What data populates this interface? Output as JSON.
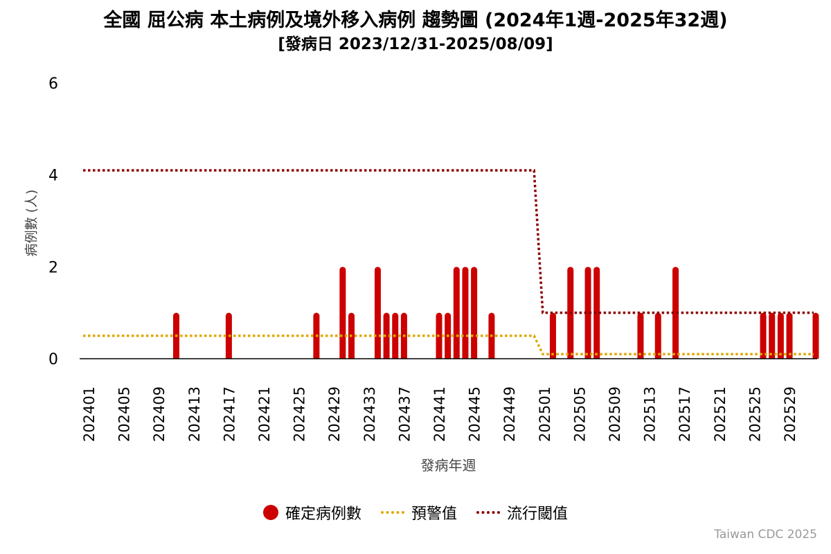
{
  "title": "全國 屈公病 本土病例及境外移入病例 趨勢圖 (2024年1週-2025年32週)",
  "subtitle": "[發病日 2023/12/31-2025/08/09]",
  "credit": "Taiwan CDC 2025",
  "colors": {
    "cases": "#cc0000",
    "warning": "#e0a800",
    "epidemic": "#8b0000",
    "axis": "#000000"
  },
  "chart_data": {
    "type": "bar",
    "xlabel": "發病年週",
    "ylabel": "病例數 (人)",
    "ylim": [
      0,
      6
    ],
    "yticks": [
      0,
      2,
      4,
      6
    ],
    "grid": false,
    "legend_position": "bottom-center",
    "x_tick_labels": [
      "202401",
      "202405",
      "202409",
      "202413",
      "202417",
      "202421",
      "202425",
      "202429",
      "202433",
      "202437",
      "202441",
      "202445",
      "202449",
      "202501",
      "202505",
      "202509",
      "202513",
      "202517",
      "202521",
      "202525",
      "202529"
    ],
    "weeks": [
      "202401",
      "202402",
      "202403",
      "202404",
      "202405",
      "202406",
      "202407",
      "202408",
      "202409",
      "202410",
      "202411",
      "202412",
      "202413",
      "202414",
      "202415",
      "202416",
      "202417",
      "202418",
      "202419",
      "202420",
      "202421",
      "202422",
      "202423",
      "202424",
      "202425",
      "202426",
      "202427",
      "202428",
      "202429",
      "202430",
      "202431",
      "202432",
      "202433",
      "202434",
      "202435",
      "202436",
      "202437",
      "202438",
      "202439",
      "202440",
      "202441",
      "202442",
      "202443",
      "202444",
      "202445",
      "202446",
      "202447",
      "202448",
      "202449",
      "202450",
      "202451",
      "202452",
      "202501",
      "202502",
      "202503",
      "202504",
      "202505",
      "202506",
      "202507",
      "202508",
      "202509",
      "202510",
      "202511",
      "202512",
      "202513",
      "202514",
      "202515",
      "202516",
      "202517",
      "202518",
      "202519",
      "202520",
      "202521",
      "202522",
      "202523",
      "202524",
      "202525",
      "202526",
      "202527",
      "202528",
      "202529",
      "202530",
      "202531",
      "202532"
    ],
    "series": [
      {
        "name": "確定病例數",
        "type": "bar",
        "values": [
          0,
          0,
          0,
          0,
          0,
          0,
          0,
          0,
          0,
          0,
          1,
          0,
          0,
          0,
          0,
          0,
          1,
          0,
          0,
          0,
          0,
          0,
          0,
          0,
          0,
          0,
          1,
          0,
          0,
          2,
          1,
          0,
          0,
          2,
          1,
          1,
          1,
          0,
          0,
          0,
          1,
          1,
          2,
          2,
          2,
          0,
          1,
          0,
          0,
          0,
          0,
          0,
          0,
          1,
          0,
          2,
          0,
          2,
          2,
          0,
          0,
          0,
          0,
          1,
          0,
          1,
          0,
          2,
          0,
          0,
          0,
          0,
          0,
          0,
          0,
          0,
          0,
          1,
          1,
          1,
          1,
          0,
          0,
          1
        ]
      },
      {
        "name": "預警值",
        "type": "line",
        "style": "dotted",
        "segments": [
          {
            "from": "202401",
            "to": "202452",
            "value": 0.5
          },
          {
            "from": "202501",
            "to": "202532",
            "value": 0.1
          }
        ]
      },
      {
        "name": "流行閾值",
        "type": "line",
        "style": "dotted",
        "segments": [
          {
            "from": "202401",
            "to": "202452",
            "value": 4.1
          },
          {
            "from": "202501",
            "to": "202532",
            "value": 1.0
          }
        ]
      }
    ]
  }
}
